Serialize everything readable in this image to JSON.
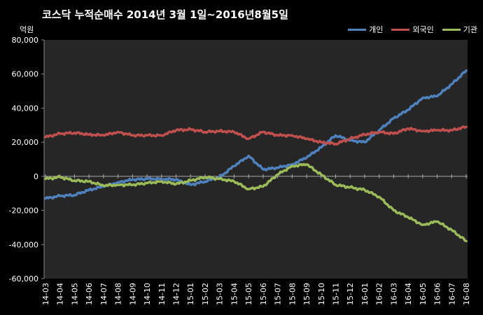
{
  "chart_data": {
    "type": "line",
    "title": "코스닥  누적순매수 2014년 3월 1일~2016년8월5일",
    "ylabel": "억원",
    "xlabel": "",
    "ylim": [
      -60000,
      80000
    ],
    "yticks": [
      80000,
      60000,
      40000,
      20000,
      0,
      -20000,
      -40000,
      -60000
    ],
    "ytick_labels": [
      "80,000",
      "60,000",
      "40,000",
      "20,000",
      "0",
      "-20,000",
      "-40,000",
      "-60,000"
    ],
    "categories": [
      "14-03",
      "14-04",
      "14-05",
      "14-06",
      "14-07",
      "14-08",
      "14-09",
      "14-10",
      "14-11",
      "14-12",
      "15-01",
      "15-02",
      "15-03",
      "15-04",
      "15-05",
      "15-06",
      "15-07",
      "15-08",
      "15-09",
      "15-10",
      "15-11",
      "15-12",
      "16-01",
      "16-02",
      "16-03",
      "16-04",
      "16-05",
      "16-06",
      "16-07",
      "16-08"
    ],
    "grid": false,
    "legend_position": "top-right",
    "series": [
      {
        "name": "개인",
        "color": "#4f81bd",
        "values": [
          -13000,
          -11500,
          -11000,
          -8000,
          -6000,
          -3500,
          -2000,
          -1500,
          -1500,
          -2000,
          -5000,
          -3000,
          -500,
          6000,
          12000,
          4000,
          5000,
          7000,
          11000,
          17000,
          24000,
          21000,
          20000,
          27000,
          34000,
          39000,
          46000,
          47000,
          54000,
          62000
        ]
      },
      {
        "name": "외국인",
        "color": "#c0504d",
        "values": [
          23000,
          25000,
          25500,
          24500,
          24000,
          26000,
          24000,
          24000,
          24000,
          27000,
          27500,
          26000,
          26500,
          26000,
          22000,
          26000,
          24000,
          24000,
          22000,
          20000,
          19000,
          22000,
          24500,
          26000,
          25000,
          28000,
          26500,
          27000,
          27000,
          29000
        ]
      },
      {
        "name": "기관",
        "color": "#9bbb59",
        "values": [
          -1500,
          -500,
          -2500,
          -3000,
          -5500,
          -5000,
          -5000,
          -4000,
          -3000,
          -4500,
          -2500,
          -500,
          -1500,
          -3000,
          -7500,
          -6000,
          1000,
          6000,
          7000,
          1000,
          -5000,
          -6500,
          -8000,
          -12000,
          -20000,
          -24000,
          -28500,
          -26500,
          -31500,
          -38000
        ]
      }
    ]
  }
}
